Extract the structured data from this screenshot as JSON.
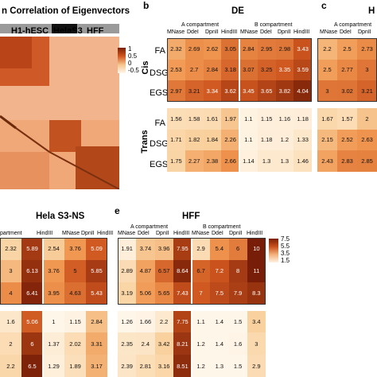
{
  "panel_a": {
    "title": "n Correlation of Eigenvectors",
    "groups": [
      "H1-hESC",
      "HelaS3",
      "HFF"
    ],
    "colorbar_ticks": [
      "1",
      "0.5",
      "0",
      "-0.5"
    ]
  },
  "panel_b": {
    "letter": "b",
    "title": "DE"
  },
  "panel_c": {
    "letter": "c",
    "title": "H"
  },
  "panel_d": {
    "title": "Hela S3-NS"
  },
  "panel_e": {
    "letter": "e",
    "title": "HFF"
  },
  "labels": {
    "a_comp": "A compartment",
    "b_comp": "B compartment",
    "cis": "Cis",
    "trans": "Trans",
    "cols_full": [
      "MNase",
      "DdeI",
      "DpnII",
      "HindIII"
    ],
    "cols_d_a": [
      "partment",
      "HindIII"
    ],
    "cols_d_b": [
      "MNase",
      "DpnII",
      "HindIII"
    ],
    "rows": [
      "FA",
      "DSG",
      "EGS",
      "FA",
      "DSG",
      "EGS"
    ]
  },
  "colorbar_e": {
    "ticks": [
      "7.5",
      "5.5",
      "3.5",
      "1.5"
    ]
  },
  "chart_data": [
    {
      "type": "heatmap",
      "title": "DE",
      "rows": [
        "Cis FA",
        "Cis DSG",
        "Cis EGS",
        "Trans FA",
        "Trans DSG",
        "Trans EGS"
      ],
      "columns": [
        "A MNase",
        "A DdeI",
        "A DpnII",
        "A HindIII",
        "B MNase",
        "B DdeI",
        "B DpnII",
        "B HindIII"
      ],
      "values": [
        [
          2.32,
          2.69,
          2.62,
          3.05,
          2.84,
          2.95,
          2.98,
          3.43
        ],
        [
          2.53,
          2.7,
          2.84,
          3.18,
          3.07,
          3.25,
          3.35,
          3.59
        ],
        [
          2.97,
          3.21,
          3.34,
          3.62,
          3.45,
          3.65,
          3.82,
          4.04
        ],
        [
          1.56,
          1.58,
          1.61,
          1.97,
          1.1,
          1.15,
          1.16,
          1.18
        ],
        [
          1.71,
          1.82,
          1.84,
          2.26,
          1.1,
          1.18,
          1.2,
          1.33
        ],
        [
          1.75,
          2.27,
          2.38,
          2.66,
          1.14,
          1.3,
          1.3,
          1.46
        ]
      ]
    },
    {
      "type": "heatmap",
      "title": "H",
      "rows": [
        "Cis FA",
        "Cis DSG",
        "Cis EGS",
        "Trans FA",
        "Trans DSG",
        "Trans EGS"
      ],
      "columns": [
        "A MNase",
        "A DdeI",
        "A DpnII"
      ],
      "values": [
        [
          2.2,
          2.5,
          2.73
        ],
        [
          2.5,
          2.77,
          3.0
        ],
        [
          3.0,
          3.02,
          3.21
        ],
        [
          1.67,
          1.57,
          2.0
        ],
        [
          2.15,
          2.52,
          2.63
        ],
        [
          2.43,
          2.83,
          2.85
        ]
      ]
    },
    {
      "type": "heatmap",
      "title": "Hela S3-NS",
      "rows": [
        "Cis FA",
        "Cis DSG",
        "Cis EGS",
        "Trans FA",
        "Trans DSG",
        "Trans EGS"
      ],
      "columns": [
        "A DpnII",
        "A HindIII",
        "B MNase",
        "B DpnII",
        "B HindIII"
      ],
      "values": [
        [
          2.32,
          5.89,
          2.54,
          3.76,
          5.09
        ],
        [
          3.0,
          6.13,
          3.76,
          5.0,
          5.85
        ],
        [
          4.0,
          6.41,
          3.95,
          4.63,
          5.43
        ],
        [
          1.6,
          5.06,
          1.0,
          1.15,
          2.84
        ],
        [
          2.0,
          6.0,
          1.37,
          2.02,
          3.31
        ],
        [
          2.2,
          6.5,
          1.29,
          1.89,
          3.17
        ]
      ]
    },
    {
      "type": "heatmap",
      "title": "HFF",
      "rows": [
        "Cis FA",
        "Cis DSG",
        "Cis EGS",
        "Trans FA",
        "Trans DSG",
        "Trans EGS"
      ],
      "columns": [
        "A MNase",
        "A DdeI",
        "A DpnII",
        "A HindIII",
        "B MNase",
        "B DdeI",
        "B DpnII",
        "B HindIII"
      ],
      "values": [
        [
          1.91,
          3.74,
          3.96,
          7.95,
          2.9,
          5.4,
          6.0,
          10.0
        ],
        [
          2.89,
          4.87,
          6.57,
          8.64,
          6.7,
          7.2,
          8.0,
          11.0
        ],
        [
          3.19,
          5.06,
          5.65,
          7.43,
          7.0,
          7.5,
          7.9,
          8.3
        ],
        [
          1.26,
          1.66,
          2.2,
          7.75,
          1.1,
          1.4,
          1.5,
          3.4
        ],
        [
          2.35,
          2.4,
          3.42,
          8.21,
          1.2,
          1.4,
          1.6,
          3.0
        ],
        [
          2.39,
          2.81,
          3.16,
          8.51,
          1.2,
          1.3,
          1.5,
          2.9
        ]
      ],
      "color_range": [
        1.5,
        7.5
      ]
    }
  ]
}
